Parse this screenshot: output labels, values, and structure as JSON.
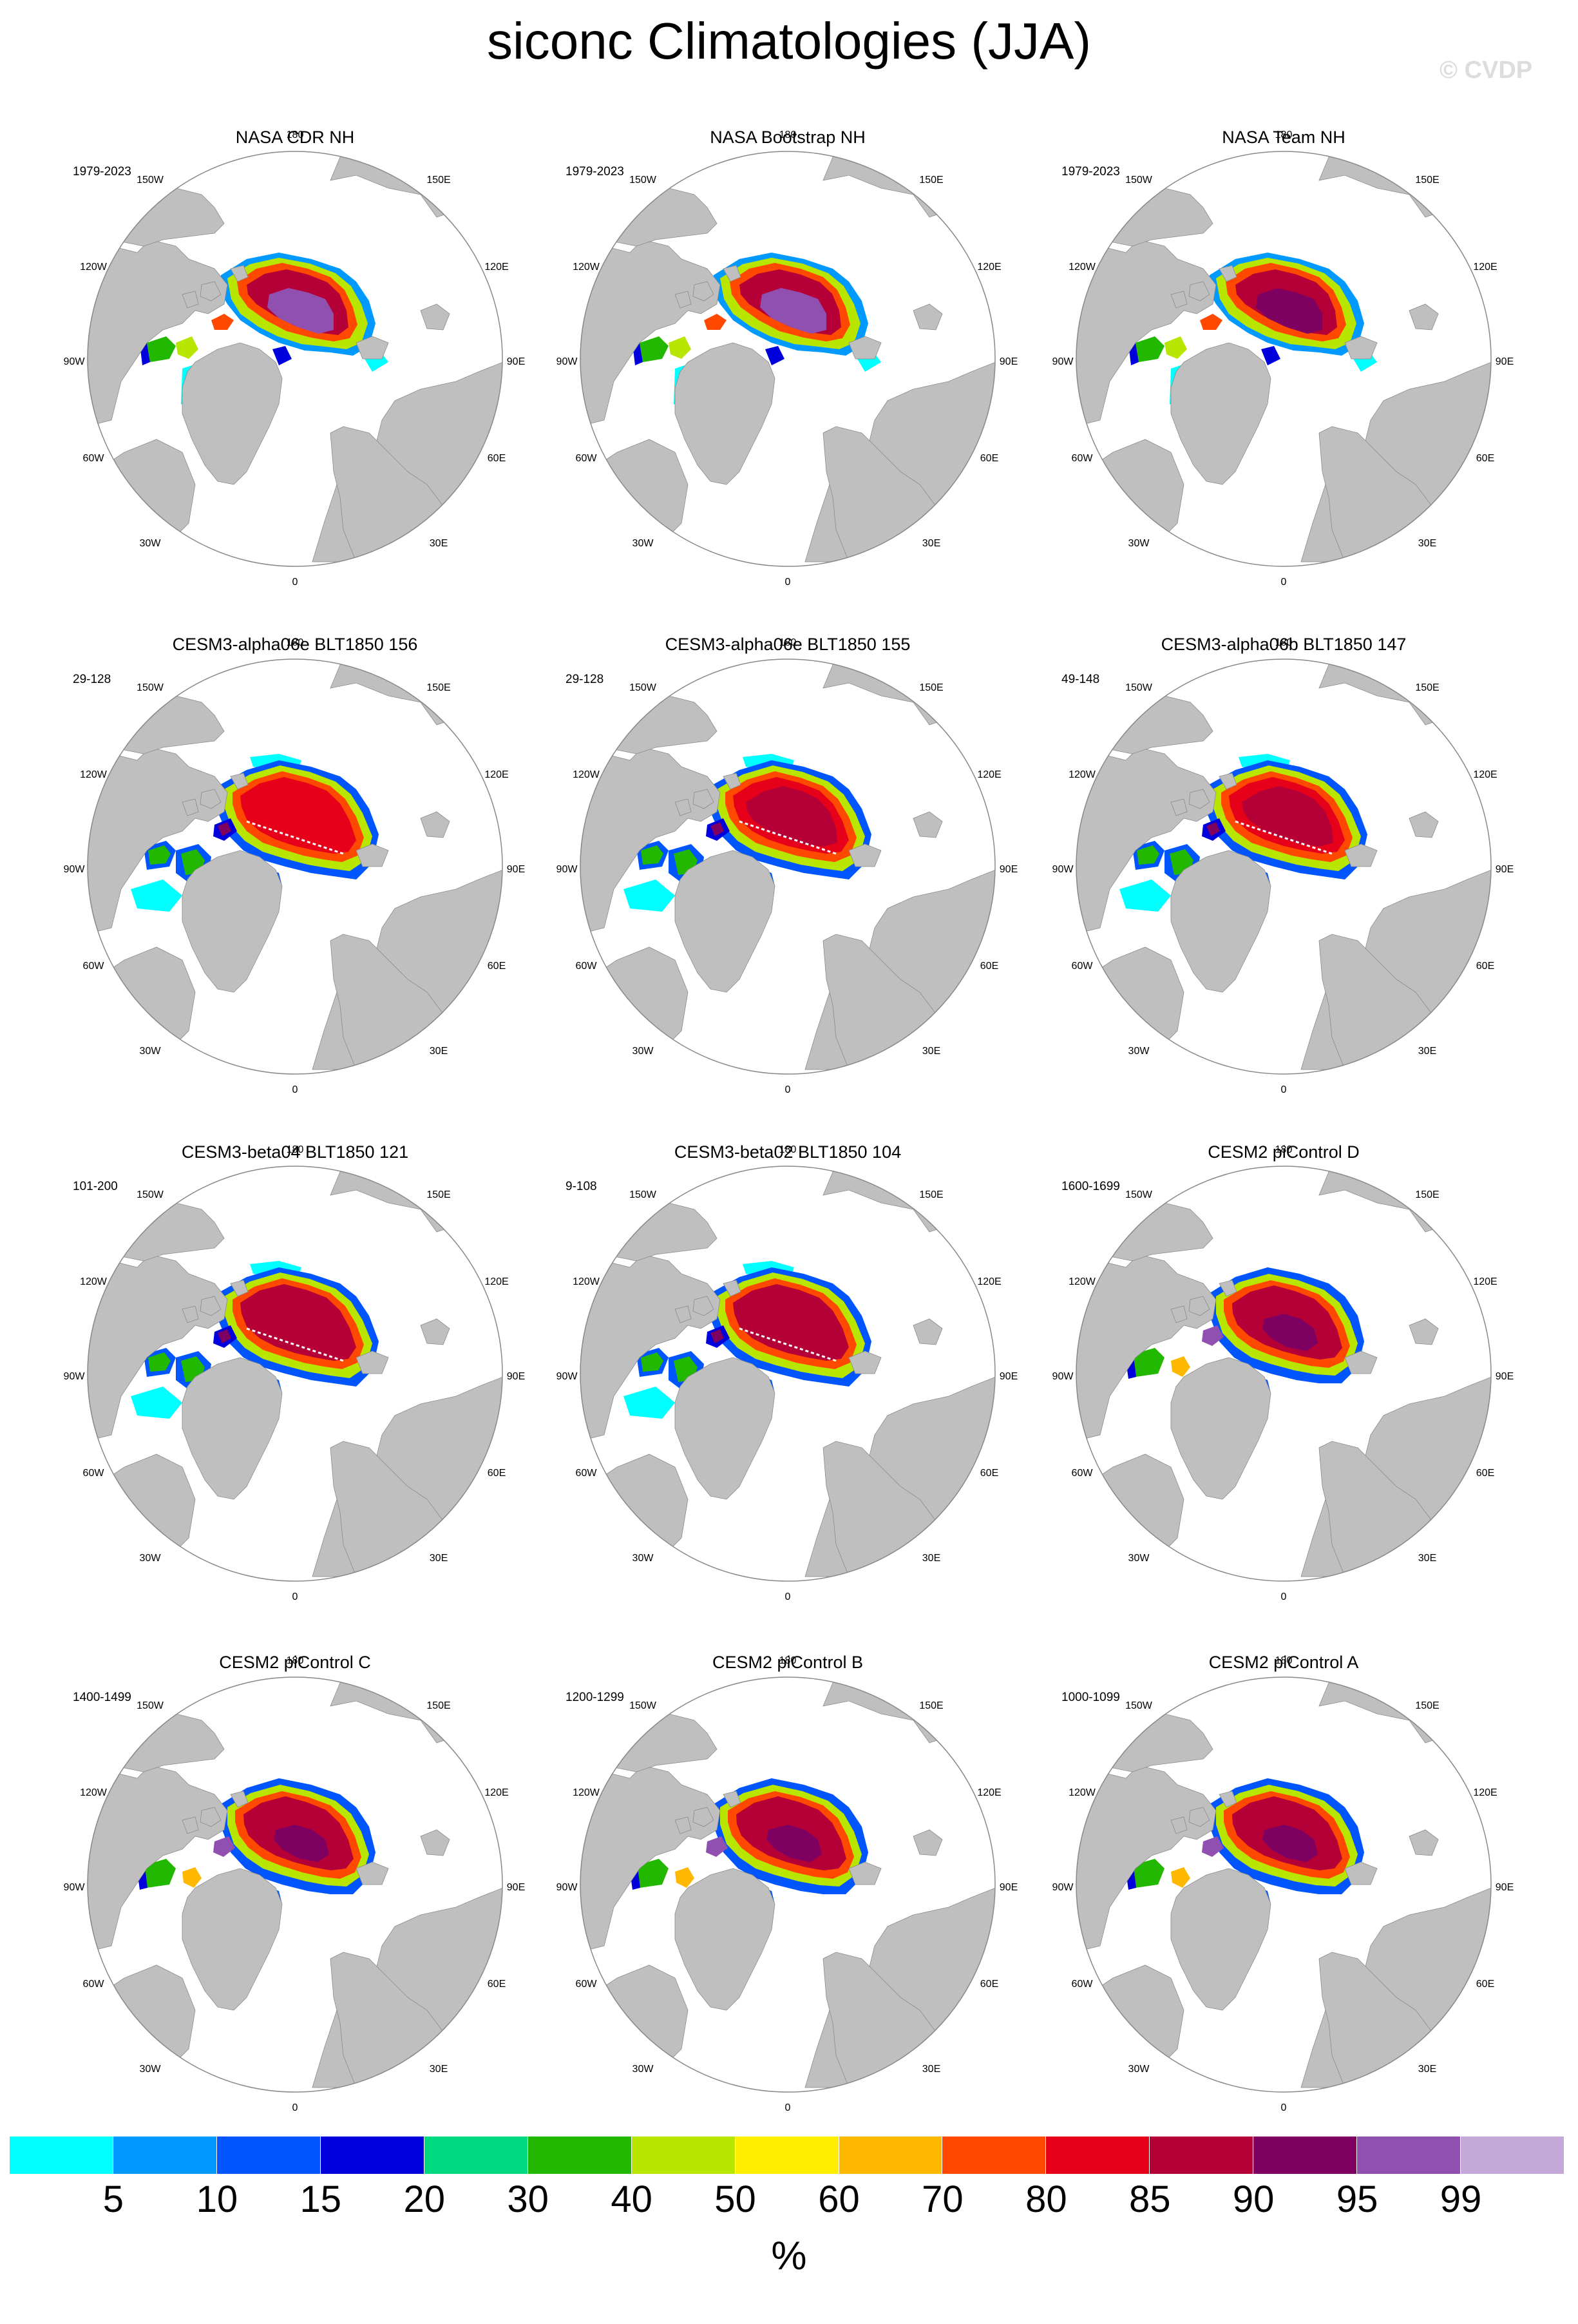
{
  "title": "siconc Climatologies (JJA)",
  "watermark": "© CVDP",
  "colors": {
    "land": "#bfbfbf",
    "ocean": "#ffffff",
    "outline": "#888888"
  },
  "chart_data": {
    "type": "polar-map-panels",
    "projection": "north polar stereographic",
    "variable": "siconc",
    "season": "JJA",
    "units": "%",
    "longitude_labels": [
      "180",
      "150E",
      "120E",
      "90E",
      "60E",
      "30E",
      "0",
      "30W",
      "60W",
      "90W",
      "120W",
      "150W"
    ],
    "colorbar": {
      "colors": [
        "#00ffff",
        "#0099ff",
        "#0055ff",
        "#0000dd",
        "#00d980",
        "#22b800",
        "#b8e600",
        "#ffee00",
        "#ffb800",
        "#ff4800",
        "#e60019",
        "#b40037",
        "#7e0060",
        "#9050b0",
        "#c4a8d8"
      ],
      "labels": [
        "5",
        "10",
        "15",
        "20",
        "30",
        "40",
        "50",
        "60",
        "70",
        "80",
        "85",
        "90",
        "95",
        "99"
      ]
    },
    "panels": [
      {
        "title": "NASA CDR NH",
        "years": "1979-2023",
        "pattern": "obs",
        "core": "#9050b0",
        "ring": "#b40037",
        "seam": false
      },
      {
        "title": "NASA Bootstrap NH",
        "years": "1979-2023",
        "pattern": "obs",
        "core": "#9050b0",
        "ring": "#b40037",
        "seam": false
      },
      {
        "title": "NASA Team NH",
        "years": "1979-2023",
        "pattern": "obs",
        "core": "#7e0060",
        "ring": "#b40037",
        "seam": false
      },
      {
        "title": "CESM3-alpha06e BLT1850 156",
        "years": "29-128",
        "pattern": "model",
        "core": "#e60019",
        "ring": "#e60019",
        "seam": true
      },
      {
        "title": "CESM3-alpha06e BLT1850 155",
        "years": "29-128",
        "pattern": "model",
        "core": "#b40037",
        "ring": "#e60019",
        "seam": true
      },
      {
        "title": "CESM3-alpha06b BLT1850 147",
        "years": "49-148",
        "pattern": "model",
        "core": "#b40037",
        "ring": "#e60019",
        "seam": true
      },
      {
        "title": "CESM3-beta04 BLT1850 121",
        "years": "101-200",
        "pattern": "model",
        "core": "#b40037",
        "ring": "#b40037",
        "seam": true
      },
      {
        "title": "CESM3-beta02 BLT1850 104",
        "years": "9-108",
        "pattern": "model",
        "core": "#b40037",
        "ring": "#b40037",
        "seam": true
      },
      {
        "title": "CESM2 piControl D",
        "years": "1600-1699",
        "pattern": "cesm2",
        "core": "#7e0060",
        "ring": "#b40037",
        "seam": false
      },
      {
        "title": "CESM2 piControl C",
        "years": "1400-1499",
        "pattern": "cesm2",
        "core": "#7e0060",
        "ring": "#b40037",
        "seam": false
      },
      {
        "title": "CESM2 piControl B",
        "years": "1200-1299",
        "pattern": "cesm2",
        "core": "#7e0060",
        "ring": "#b40037",
        "seam": false
      },
      {
        "title": "CESM2 piControl A",
        "years": "1000-1099",
        "pattern": "cesm2",
        "core": "#7e0060",
        "ring": "#b40037",
        "seam": false
      }
    ]
  }
}
